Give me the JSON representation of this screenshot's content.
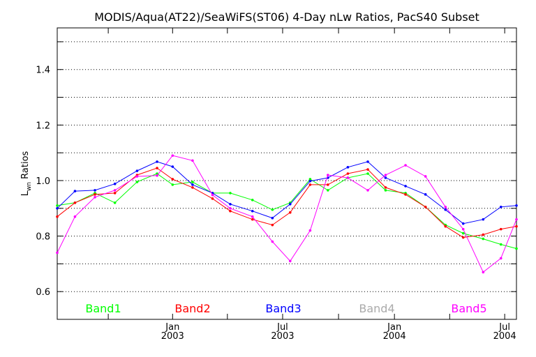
{
  "chart_data": {
    "type": "line",
    "title": "MODIS/Aqua(AT22)/SeaWiFS(ST06) 4-Day nLw Ratios, PacS40 Subset",
    "ylabel_main": "L",
    "ylabel_sub": "wn",
    "ylabel_rest": " Ratios",
    "xlabel": "",
    "x_unit": "decimal year",
    "xlim": [
      2002.48,
      2004.55
    ],
    "ylim": [
      0.5,
      1.55
    ],
    "y_ticks": [
      {
        "value": 0.6,
        "label": "0.6"
      },
      {
        "value": 0.8,
        "label": "0.8"
      },
      {
        "value": 1.0,
        "label": "1.0"
      },
      {
        "value": 1.2,
        "label": "1.2"
      },
      {
        "value": 1.4,
        "label": "1.4"
      }
    ],
    "y_gridlines": [
      0.6,
      0.7,
      0.8,
      0.9,
      1.0,
      1.1,
      1.2,
      1.3,
      1.4,
      1.5
    ],
    "x_ticks": [
      {
        "value": 2002.71,
        "label": "",
        "label2": ""
      },
      {
        "value": 2003.0,
        "label": "Jan",
        "label2": "2003"
      },
      {
        "value": 2003.247,
        "label": "",
        "label2": ""
      },
      {
        "value": 2003.496,
        "label": "Jul",
        "label2": "2003"
      },
      {
        "value": 2003.748,
        "label": "",
        "label2": ""
      },
      {
        "value": 2004.0,
        "label": "Jan",
        "label2": "2004"
      },
      {
        "value": 2004.249,
        "label": "",
        "label2": ""
      },
      {
        "value": 2004.497,
        "label": "Jul",
        "label2": "2004"
      }
    ],
    "grid": true,
    "legend_position": "bottom-inside",
    "series": [
      {
        "name": "Band1",
        "color": "#00ff00",
        "x": [
          2002.48,
          2002.56,
          2002.65,
          2002.74,
          2002.84,
          2002.93,
          2003.0,
          2003.09,
          2003.18,
          2003.26,
          2003.36,
          2003.45,
          2003.53,
          2003.62,
          2003.7,
          2003.79,
          2003.88,
          2003.96,
          2004.05,
          2004.14,
          2004.23,
          2004.31,
          2004.4,
          2004.48,
          2004.55
        ],
        "y": [
          0.91,
          0.92,
          0.955,
          0.92,
          0.995,
          1.025,
          0.985,
          0.995,
          0.955,
          0.955,
          0.93,
          0.895,
          0.92,
          1.005,
          0.965,
          1.01,
          1.025,
          0.965,
          0.955,
          0.905,
          0.84,
          0.81,
          0.79,
          0.77,
          0.755
        ]
      },
      {
        "name": "Band2",
        "color": "#ff0000",
        "x": [
          2002.48,
          2002.56,
          2002.65,
          2002.74,
          2002.84,
          2002.93,
          2003.0,
          2003.09,
          2003.18,
          2003.26,
          2003.36,
          2003.45,
          2003.53,
          2003.62,
          2003.7,
          2003.79,
          2003.88,
          2003.96,
          2004.05,
          2004.14,
          2004.23,
          2004.31,
          2004.4,
          2004.48,
          2004.55
        ],
        "y": [
          0.87,
          0.92,
          0.95,
          0.955,
          1.02,
          1.045,
          1.005,
          0.975,
          0.935,
          0.89,
          0.86,
          0.84,
          0.885,
          0.985,
          0.985,
          1.025,
          1.04,
          0.975,
          0.95,
          0.905,
          0.835,
          0.795,
          0.805,
          0.825,
          0.835
        ]
      },
      {
        "name": "Band3",
        "color": "#0000ff",
        "x": [
          2002.48,
          2002.56,
          2002.65,
          2002.74,
          2002.84,
          2002.93,
          2003.0,
          2003.09,
          2003.18,
          2003.26,
          2003.36,
          2003.45,
          2003.53,
          2003.62,
          2003.7,
          2003.79,
          2003.88,
          2003.96,
          2004.05,
          2004.14,
          2004.23,
          2004.31,
          2004.4,
          2004.48,
          2004.55
        ],
        "y": [
          0.9,
          0.962,
          0.965,
          0.988,
          1.035,
          1.068,
          1.05,
          0.985,
          0.955,
          0.915,
          0.89,
          0.865,
          0.915,
          0.998,
          1.01,
          1.048,
          1.068,
          1.01,
          0.98,
          0.95,
          0.895,
          0.845,
          0.86,
          0.905,
          0.91
        ]
      },
      {
        "name": "Band5",
        "color": "#ff00ff",
        "x": [
          2002.48,
          2002.56,
          2002.65,
          2002.74,
          2002.84,
          2002.93,
          2003.0,
          2003.09,
          2003.18,
          2003.26,
          2003.36,
          2003.45,
          2003.53,
          2003.62,
          2003.7,
          2003.79,
          2003.88,
          2003.96,
          2004.05,
          2004.14,
          2004.23,
          2004.31,
          2004.4,
          2004.48,
          2004.55
        ],
        "y": [
          0.74,
          0.87,
          0.94,
          0.965,
          1.015,
          1.018,
          1.09,
          1.072,
          0.948,
          0.9,
          0.87,
          0.78,
          0.71,
          0.82,
          1.02,
          1.01,
          0.965,
          1.02,
          1.055,
          1.015,
          0.905,
          0.825,
          0.67,
          0.72,
          0.86
        ]
      }
    ],
    "legend": [
      {
        "name": "Band1",
        "color": "#00ff00"
      },
      {
        "name": "Band2",
        "color": "#ff0000"
      },
      {
        "name": "Band3",
        "color": "#0000ff"
      },
      {
        "name": "Band4",
        "color": "#aaaaaa"
      },
      {
        "name": "Band5",
        "color": "#ff00ff"
      }
    ]
  }
}
